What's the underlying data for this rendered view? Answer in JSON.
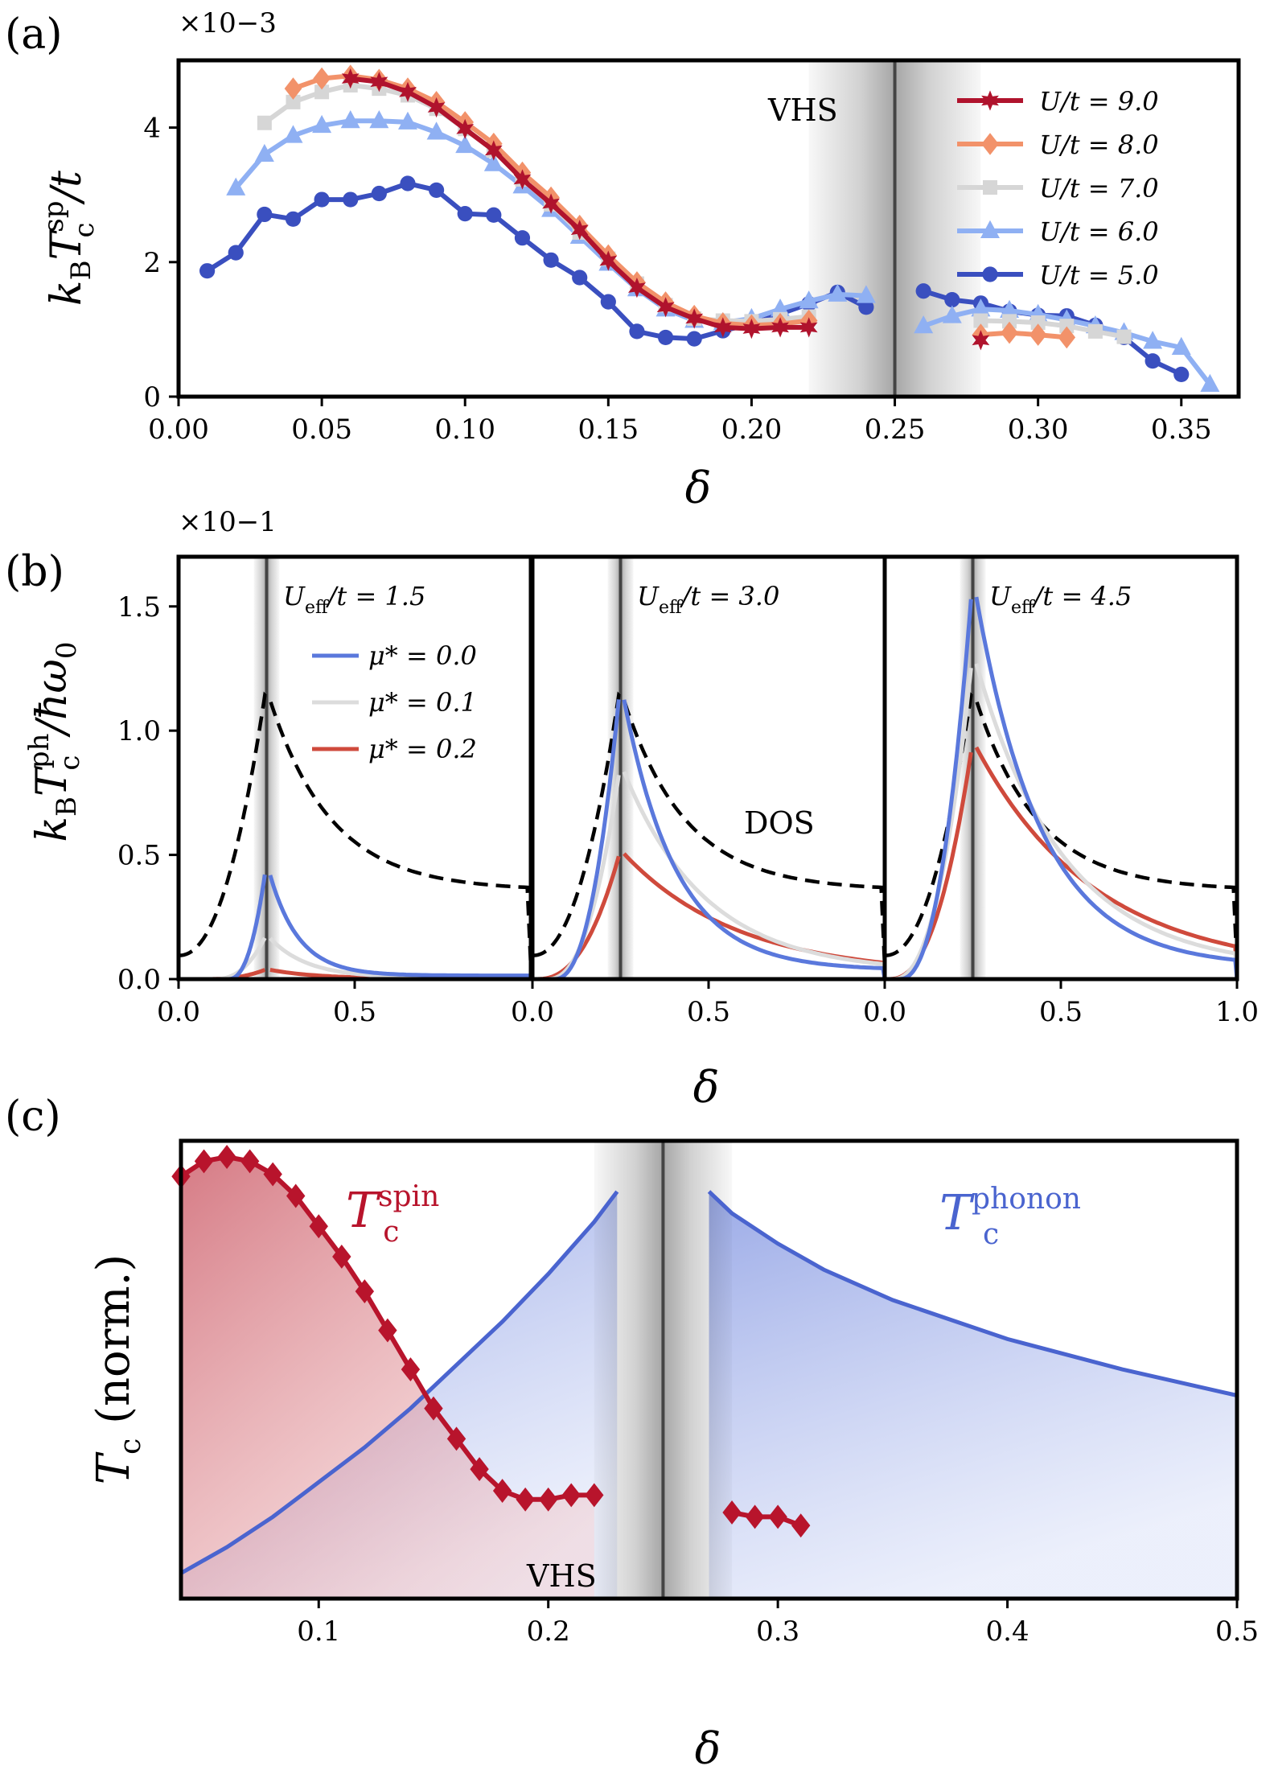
{
  "colors": {
    "u9": "#b0132d",
    "u8": "#f2926a",
    "u7": "#d6d6d6",
    "u6": "#8fb0f3",
    "u5": "#3a4fbf",
    "mu0": "#5a78dc",
    "mu1": "#dcdcdc",
    "mu2": "#cf4a3c",
    "dos": "#000000",
    "spin": "#b8142c",
    "phonon": "#4a64cf",
    "vhs": "#444444"
  },
  "chart_data": [
    {
      "id": "a",
      "type": "line",
      "panel_tag": "(a)",
      "xlabel": "δ",
      "ylabel": "kBTcsp/t",
      "ylabel_main": "k",
      "ylabel_sub": "B",
      "ylabel_mid": "T",
      "ylabel_sup": "sp",
      "ylabel_subc": "c",
      "ylabel_tail": "/t",
      "y_multiplier": "×10−3",
      "xlim": [
        0.0,
        0.37
      ],
      "ylim": [
        0,
        5.0
      ],
      "xticks": [
        "0.00",
        "0.05",
        "0.10",
        "0.15",
        "0.20",
        "0.25",
        "0.30",
        "0.35"
      ],
      "yticks": [
        "0",
        "2",
        "4"
      ],
      "annotation": "VHS",
      "vhs_x": 0.25,
      "series": [
        {
          "name": "U/t = 9.0",
          "marker": "star",
          "color": "#b0132d",
          "x": [
            0.06,
            0.07,
            0.08,
            0.09,
            0.1,
            0.11,
            0.12,
            0.13,
            0.14,
            0.15,
            0.16,
            0.17,
            0.18,
            0.19,
            0.2,
            0.21,
            0.22,
            0.28
          ],
          "y": [
            4.73,
            4.68,
            4.53,
            4.3,
            3.98,
            3.66,
            3.23,
            2.87,
            2.48,
            2.02,
            1.62,
            1.33,
            1.16,
            1.03,
            1.01,
            1.03,
            1.03,
            0.84
          ]
        },
        {
          "name": "U/t = 8.0",
          "marker": "diamond",
          "color": "#f2926a",
          "x": [
            0.04,
            0.05,
            0.06,
            0.07,
            0.08,
            0.09,
            0.1,
            0.11,
            0.12,
            0.13,
            0.14,
            0.15,
            0.16,
            0.17,
            0.18,
            0.19,
            0.2,
            0.21,
            0.22,
            0.28,
            0.29,
            0.3,
            0.31
          ],
          "y": [
            4.58,
            4.73,
            4.77,
            4.71,
            4.58,
            4.38,
            4.08,
            3.76,
            3.33,
            2.96,
            2.54,
            2.1,
            1.7,
            1.4,
            1.2,
            1.09,
            1.06,
            1.08,
            1.13,
            0.92,
            0.95,
            0.92,
            0.88
          ]
        },
        {
          "name": "U/t = 7.0",
          "marker": "square",
          "color": "#d6d6d6",
          "x": [
            0.03,
            0.04,
            0.05,
            0.06,
            0.07,
            0.08,
            0.09,
            0.1,
            0.11,
            0.12,
            0.13,
            0.14,
            0.15,
            0.16,
            0.17,
            0.18,
            0.19,
            0.2,
            0.21,
            0.22,
            0.28,
            0.29,
            0.3,
            0.31,
            0.32,
            0.33
          ],
          "y": [
            4.07,
            4.38,
            4.53,
            4.63,
            4.58,
            4.48,
            4.28,
            3.98,
            3.66,
            3.23,
            2.86,
            2.44,
            2.05,
            1.68,
            1.36,
            1.16,
            1.13,
            1.12,
            1.15,
            1.19,
            1.13,
            1.12,
            1.1,
            1.05,
            0.97,
            0.89
          ]
        },
        {
          "name": "U/t = 6.0",
          "marker": "triangle",
          "color": "#8fb0f3",
          "x": [
            0.02,
            0.03,
            0.04,
            0.05,
            0.06,
            0.07,
            0.08,
            0.09,
            0.1,
            0.11,
            0.12,
            0.13,
            0.14,
            0.15,
            0.16,
            0.17,
            0.18,
            0.19,
            0.2,
            0.21,
            0.22,
            0.23,
            0.24,
            0.26,
            0.27,
            0.28,
            0.29,
            0.3,
            0.31,
            0.32,
            0.33,
            0.34,
            0.35,
            0.36
          ],
          "y": [
            3.1,
            3.6,
            3.88,
            4.03,
            4.1,
            4.1,
            4.08,
            3.93,
            3.73,
            3.46,
            3.13,
            2.78,
            2.38,
            1.98,
            1.6,
            1.3,
            1.13,
            1.1,
            1.16,
            1.3,
            1.42,
            1.52,
            1.5,
            1.05,
            1.2,
            1.3,
            1.28,
            1.22,
            1.14,
            1.05,
            0.95,
            0.82,
            0.73,
            0.18
          ]
        },
        {
          "name": "U/t = 5.0",
          "marker": "circle",
          "color": "#3a4fbf",
          "x": [
            0.01,
            0.02,
            0.03,
            0.04,
            0.05,
            0.06,
            0.07,
            0.08,
            0.09,
            0.1,
            0.11,
            0.12,
            0.13,
            0.14,
            0.15,
            0.16,
            0.17,
            0.18,
            0.19,
            0.2,
            0.21,
            0.22,
            0.23,
            0.24,
            0.26,
            0.27,
            0.28,
            0.29,
            0.3,
            0.31,
            0.32,
            0.33,
            0.34,
            0.35
          ],
          "y": [
            1.87,
            2.14,
            2.71,
            2.64,
            2.93,
            2.93,
            3.02,
            3.17,
            3.07,
            2.72,
            2.7,
            2.36,
            2.03,
            1.77,
            1.41,
            0.97,
            0.88,
            0.86,
            0.98,
            1.08,
            1.23,
            1.38,
            1.55,
            1.33,
            1.57,
            1.44,
            1.39,
            1.27,
            1.21,
            1.2,
            1.06,
            0.88,
            0.53,
            0.33
          ]
        }
      ]
    },
    {
      "id": "b",
      "type": "line",
      "panel_tag": "(b)",
      "xlabel": "δ",
      "ylabel": "kBTcph/ħω0",
      "ylabel_main": "k",
      "ylabel_sub": "B",
      "ylabel_mid": "T",
      "ylabel_sup": "ph",
      "ylabel_subc": "c",
      "ylabel_tail": "/ħω",
      "ylabel_tail_sub": "0",
      "y_multiplier": "×10−1",
      "xlim": [
        0.0,
        1.0
      ],
      "ylim": [
        0.0,
        1.7
      ],
      "xticks": [
        "0.0",
        "0.5",
        "0.0",
        "0.5",
        "0.0",
        "0.5",
        "1.0"
      ],
      "yticks": [
        "0.0",
        "0.5",
        "1.0",
        "1.5"
      ],
      "annotation": "DOS",
      "vhs_x": 0.25,
      "legend": [
        "μ* = 0.0",
        "μ* = 0.1",
        "μ* = 0.2"
      ],
      "subpanels": [
        {
          "title": "Ueff/t = 1.5",
          "title_main": "U",
          "title_sub": "eff",
          "title_tail": "/t = 1.5",
          "peak": {
            "mu0": 0.47,
            "mu1": 0.18,
            "mu2": 0.04
          }
        },
        {
          "title": "Ueff/t = 3.0",
          "title_main": "U",
          "title_sub": "eff",
          "title_tail": "/t = 3.0",
          "peak": {
            "mu0": 1.2,
            "mu1": 0.87,
            "mu2": 0.52
          }
        },
        {
          "title": "Ueff/t = 4.5",
          "title_main": "U",
          "title_sub": "eff",
          "title_tail": "/t = 4.5",
          "peak": {
            "mu0": 1.62,
            "mu1": 1.32,
            "mu2": 0.96
          }
        }
      ],
      "dos_peak": 1.19
    },
    {
      "id": "c",
      "type": "area",
      "panel_tag": "(c)",
      "xlabel": "δ",
      "ylabel": "Tc (norm.)",
      "ylabel_main": "T",
      "ylabel_sub": "c",
      "ylabel_tail": " (norm.)",
      "xlim": [
        0.04,
        0.5
      ],
      "ylim": [
        0,
        1
      ],
      "xticks": [
        "0.1",
        "0.2",
        "0.3",
        "0.4",
        "0.5"
      ],
      "annotation": "VHS",
      "vhs_x": 0.25,
      "label_spin": "T",
      "label_spin_sub": "c",
      "label_spin_sup": "spin",
      "label_phonon": "T",
      "label_phonon_sub": "c",
      "label_phonon_sup": "phonon",
      "spin": {
        "x": [
          0.04,
          0.05,
          0.06,
          0.07,
          0.08,
          0.09,
          0.1,
          0.11,
          0.12,
          0.13,
          0.14,
          0.15,
          0.16,
          0.17,
          0.18,
          0.19,
          0.2,
          0.21,
          0.22,
          0.28,
          0.29,
          0.3,
          0.31
        ],
        "y": [
          0.955,
          0.99,
          1.0,
          0.99,
          0.96,
          0.91,
          0.84,
          0.77,
          0.69,
          0.6,
          0.51,
          0.42,
          0.35,
          0.28,
          0.23,
          0.21,
          0.21,
          0.22,
          0.22,
          0.18,
          0.17,
          0.17,
          0.15
        ]
      },
      "phonon": {
        "x": [
          0.04,
          0.06,
          0.08,
          0.1,
          0.12,
          0.14,
          0.16,
          0.18,
          0.2,
          0.21,
          0.22,
          0.23,
          0.27,
          0.28,
          0.3,
          0.32,
          0.35,
          0.4,
          0.45,
          0.5
        ],
        "y": [
          0.04,
          0.1,
          0.17,
          0.25,
          0.33,
          0.42,
          0.52,
          0.62,
          0.73,
          0.79,
          0.85,
          0.92,
          0.92,
          0.87,
          0.8,
          0.74,
          0.67,
          0.58,
          0.51,
          0.45
        ]
      }
    }
  ]
}
